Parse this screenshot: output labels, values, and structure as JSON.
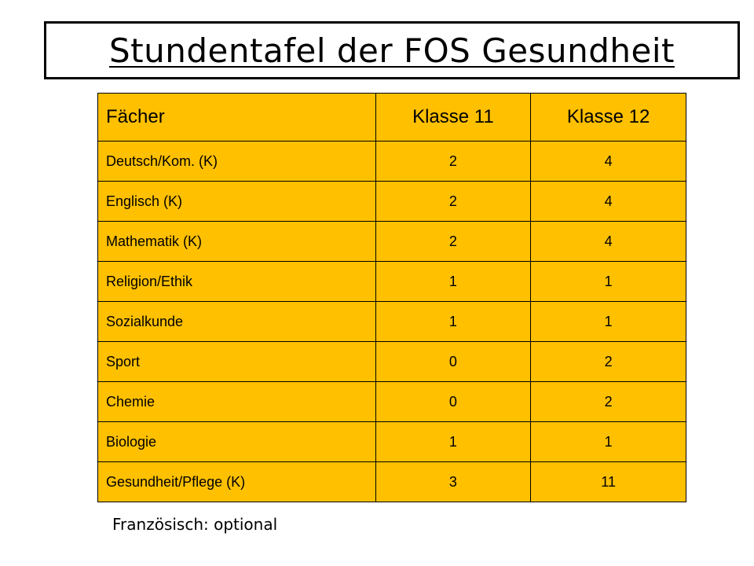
{
  "title": "Stundentafel der FOS Gesundheit",
  "table": {
    "headers": [
      "Fächer",
      "Klasse 11",
      "Klasse 12"
    ],
    "rows": [
      {
        "subject": "Deutsch/Kom. (K)",
        "k11": "2",
        "k12": "4"
      },
      {
        "subject": "Englisch (K)",
        "k11": "2",
        "k12": "4"
      },
      {
        "subject": "Mathematik (K)",
        "k11": "2",
        "k12": "4"
      },
      {
        "subject": "Religion/Ethik",
        "k11": "1",
        "k12": "1"
      },
      {
        "subject": "Sozialkunde",
        "k11": "1",
        "k12": "1"
      },
      {
        "subject": "Sport",
        "k11": "0",
        "k12": "2"
      },
      {
        "subject": "Chemie",
        "k11": "0",
        "k12": "2"
      },
      {
        "subject": "Biologie",
        "k11": "1",
        "k12": "1"
      },
      {
        "subject": "Gesundheit/Pflege (K)",
        "k11": "3",
        "k12": "11"
      }
    ]
  },
  "note": "Französisch: optional",
  "colors": {
    "cell_fill": "#ffc000",
    "border": "#000000"
  }
}
